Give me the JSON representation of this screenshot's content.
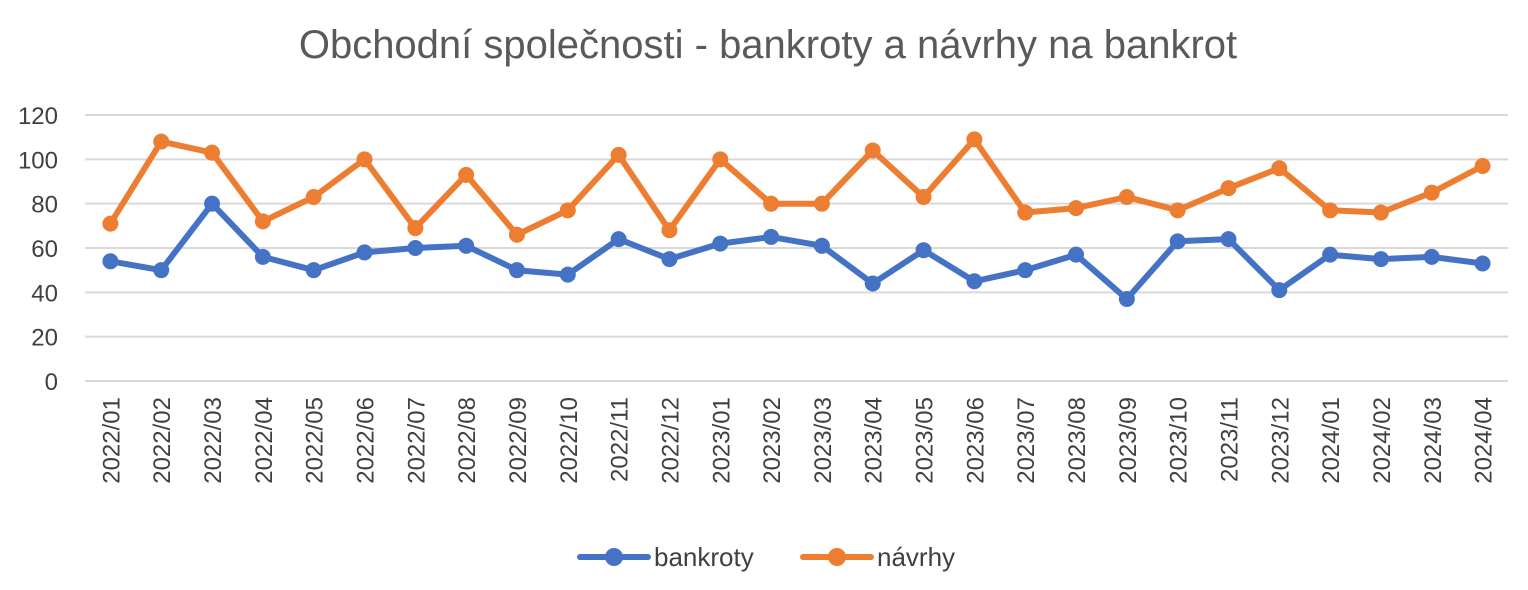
{
  "chart_data": {
    "type": "line",
    "title": "Obchodní společnosti - bankroty a návrhy na bankrot",
    "xlabel": "",
    "ylabel": "",
    "ylim": [
      0,
      120
    ],
    "yticks": [
      0,
      20,
      40,
      60,
      80,
      100,
      120
    ],
    "grid": true,
    "legend_position": "bottom",
    "categories": [
      "2022/01",
      "2022/02",
      "2022/03",
      "2022/04",
      "2022/05",
      "2022/06",
      "2022/07",
      "2022/08",
      "2022/09",
      "2022/10",
      "2022/11",
      "2022/12",
      "2023/01",
      "2023/02",
      "2023/03",
      "2023/04",
      "2023/05",
      "2023/06",
      "2023/07",
      "2023/08",
      "2023/09",
      "2023/10",
      "2023/11",
      "2023/12",
      "2024/01",
      "2024/02",
      "2024/03",
      "2024/04"
    ],
    "series": [
      {
        "name": "bankroty",
        "color": "#4472c4",
        "values": [
          54,
          50,
          80,
          56,
          50,
          58,
          60,
          61,
          50,
          48,
          64,
          55,
          62,
          65,
          61,
          44,
          59,
          45,
          50,
          57,
          37,
          63,
          64,
          41,
          57,
          55,
          56,
          53
        ]
      },
      {
        "name": "návrhy",
        "color": "#ed7d31",
        "values": [
          71,
          108,
          103,
          72,
          83,
          100,
          69,
          93,
          66,
          77,
          102,
          68,
          100,
          80,
          80,
          104,
          83,
          109,
          76,
          78,
          83,
          77,
          87,
          96,
          77,
          76,
          85,
          97
        ]
      }
    ]
  }
}
